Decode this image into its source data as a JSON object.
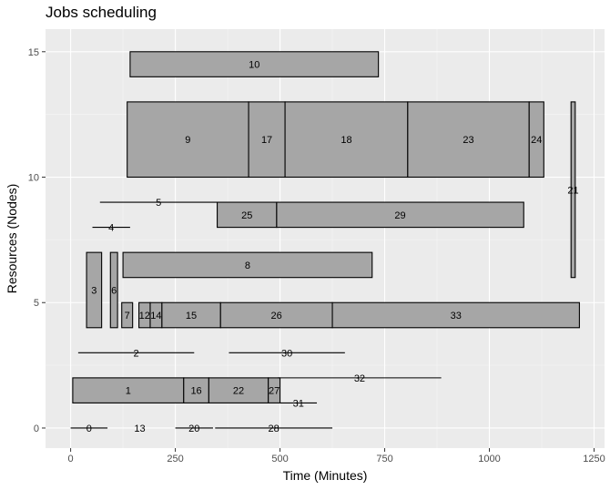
{
  "chart_data": {
    "type": "gantt",
    "title": "Jobs scheduling",
    "xlabel": "Time (Minutes)",
    "ylabel": "Resources (Nodes)",
    "xlim": [
      -60,
      1275
    ],
    "ylim": [
      -0.8,
      15.9
    ],
    "xticks": [
      0,
      250,
      500,
      750,
      1000,
      1250
    ],
    "yticks": [
      0,
      5,
      10,
      15
    ],
    "grid": true,
    "bar_color": "#a6a6a6",
    "jobs": [
      {
        "id": "0",
        "start": 0,
        "end": 88,
        "ymin": 0,
        "ymax": 0,
        "label_y": 0
      },
      {
        "id": "13",
        "start": 165,
        "end": 165,
        "ymin": 0,
        "ymax": 0,
        "label_y": 0
      },
      {
        "id": "20",
        "start": 250,
        "end": 340,
        "ymin": 0,
        "ymax": 0,
        "label_y": 0
      },
      {
        "id": "28",
        "start": 345,
        "end": 625,
        "ymin": 0,
        "ymax": 0,
        "label_y": 0
      },
      {
        "id": "1",
        "start": 5,
        "end": 270,
        "ymin": 1,
        "ymax": 2,
        "label_y": 1.5
      },
      {
        "id": "16",
        "start": 270,
        "end": 330,
        "ymin": 1,
        "ymax": 2,
        "label_y": 1.5
      },
      {
        "id": "22",
        "start": 330,
        "end": 472,
        "ymin": 1,
        "ymax": 2,
        "label_y": 1.5
      },
      {
        "id": "27",
        "start": 472,
        "end": 500,
        "ymin": 1,
        "ymax": 2,
        "label_y": 1.5
      },
      {
        "id": "31",
        "start": 500,
        "end": 588,
        "ymin": 1,
        "ymax": 1,
        "label_y": 1
      },
      {
        "id": "32",
        "start": 495,
        "end": 885,
        "ymin": 2,
        "ymax": 2,
        "label_y": 2
      },
      {
        "id": "2",
        "start": 18,
        "end": 295,
        "ymin": 3,
        "ymax": 3,
        "label_y": 3
      },
      {
        "id": "30",
        "start": 378,
        "end": 655,
        "ymin": 3,
        "ymax": 3,
        "label_y": 3
      },
      {
        "id": "3",
        "start": 38,
        "end": 74,
        "ymin": 4,
        "ymax": 7,
        "label_y": 5.5
      },
      {
        "id": "6",
        "start": 95,
        "end": 112,
        "ymin": 4,
        "ymax": 7,
        "label_y": 5.5
      },
      {
        "id": "7",
        "start": 122,
        "end": 148,
        "ymin": 4,
        "ymax": 5,
        "label_y": 4.5
      },
      {
        "id": "12",
        "start": 163,
        "end": 190,
        "ymin": 4,
        "ymax": 5,
        "label_y": 4.5
      },
      {
        "id": "14",
        "start": 190,
        "end": 218,
        "ymin": 4,
        "ymax": 5,
        "label_y": 4.5
      },
      {
        "id": "15",
        "start": 218,
        "end": 358,
        "ymin": 4,
        "ymax": 5,
        "label_y": 4.5
      },
      {
        "id": "26",
        "start": 358,
        "end": 625,
        "ymin": 4,
        "ymax": 5,
        "label_y": 4.5
      },
      {
        "id": "33",
        "start": 625,
        "end": 1215,
        "ymin": 4,
        "ymax": 5,
        "label_y": 4.5
      },
      {
        "id": "8",
        "start": 125,
        "end": 720,
        "ymin": 6,
        "ymax": 7,
        "label_y": 6.5
      },
      {
        "id": "4",
        "start": 52,
        "end": 142,
        "ymin": 8,
        "ymax": 8,
        "label_y": 8
      },
      {
        "id": "5",
        "start": 70,
        "end": 350,
        "ymin": 9,
        "ymax": 9,
        "label_y": 9
      },
      {
        "id": "25",
        "start": 350,
        "end": 492,
        "ymin": 8,
        "ymax": 9,
        "label_y": 8.5
      },
      {
        "id": "29",
        "start": 492,
        "end": 1082,
        "ymin": 8,
        "ymax": 9,
        "label_y": 8.5
      },
      {
        "id": "9",
        "start": 135,
        "end": 425,
        "ymin": 10,
        "ymax": 13,
        "label_y": 11.5
      },
      {
        "id": "17",
        "start": 425,
        "end": 512,
        "ymin": 10,
        "ymax": 13,
        "label_y": 11.5
      },
      {
        "id": "18",
        "start": 512,
        "end": 805,
        "ymin": 10,
        "ymax": 13,
        "label_y": 11.5
      },
      {
        "id": "23",
        "start": 805,
        "end": 1095,
        "ymin": 10,
        "ymax": 13,
        "label_y": 11.5
      },
      {
        "id": "24",
        "start": 1095,
        "end": 1130,
        "ymin": 10,
        "ymax": 13,
        "label_y": 11.5
      },
      {
        "id": "21",
        "start": 1195,
        "end": 1205,
        "ymin": 6,
        "ymax": 13,
        "label_y": 9.5
      },
      {
        "id": "10",
        "start": 142,
        "end": 735,
        "ymin": 14,
        "ymax": 15,
        "label_y": 14.5
      }
    ]
  }
}
